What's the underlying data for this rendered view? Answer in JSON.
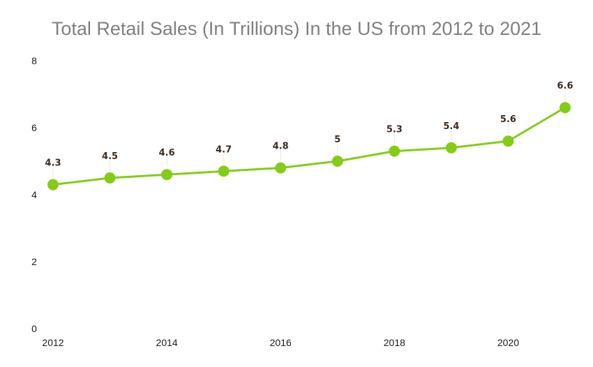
{
  "chart_data": {
    "type": "line",
    "title": "Total Retail Sales (In Trillions) In the US from 2012 to 2021",
    "xlabel": "",
    "ylabel": "",
    "x": [
      2012,
      2013,
      2014,
      2015,
      2016,
      2017,
      2018,
      2019,
      2020,
      2021
    ],
    "x_tick_labels": [
      "2012",
      "2014",
      "2016",
      "2018",
      "2020"
    ],
    "y_tick_labels": [
      "0",
      "2",
      "4",
      "6",
      "8"
    ],
    "ylim": [
      0,
      8
    ],
    "series": [
      {
        "values": [
          4.3,
          4.5,
          4.6,
          4.7,
          4.8,
          5,
          5.3,
          5.4,
          5.6,
          6.6
        ],
        "labels": [
          "4.3",
          "4.5",
          "4.6",
          "4.7",
          "4.8",
          "5",
          "5.3",
          "5.4",
          "5.6",
          "6.6"
        ],
        "color": "#84cc16"
      }
    ],
    "grid": false,
    "legend": "none"
  }
}
